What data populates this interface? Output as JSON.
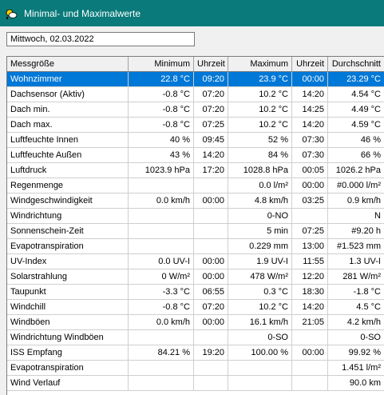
{
  "window": {
    "title": "Minimal- und Maximalwerte",
    "icon": "weather-app-icon"
  },
  "date": "Mittwoch, 02.03.2022",
  "table": {
    "headers": [
      "Messgröße",
      "Minimum",
      "Uhrzeit",
      "Maximum",
      "Uhrzeit",
      "Durchschnitt"
    ],
    "selected_row": 0,
    "rows": [
      [
        "Wohnzimmer",
        "22.8 °C",
        "09:20",
        "23.9 °C",
        "00:00",
        "23.29 °C"
      ],
      [
        "Dachsensor (Aktiv)",
        "-0.8 °C",
        "07:20",
        "10.2 °C",
        "14:20",
        "4.54 °C"
      ],
      [
        "Dach min.",
        "-0.8 °C",
        "07:20",
        "10.2 °C",
        "14:25",
        "4.49 °C"
      ],
      [
        "Dach max.",
        "-0.8 °C",
        "07:25",
        "10.2 °C",
        "14:20",
        "4.59 °C"
      ],
      [
        "Luftfeuchte Innen",
        "40 %",
        "09:45",
        "52 %",
        "07:30",
        "46 %"
      ],
      [
        "Luftfeuchte Außen",
        "43 %",
        "14:20",
        "84 %",
        "07:30",
        "66 %"
      ],
      [
        "Luftdruck",
        "1023.9 hPa",
        "17:20",
        "1028.8 hPa",
        "00:05",
        "1026.2 hPa"
      ],
      [
        "Regenmenge",
        "",
        "",
        "0.0 l/m²",
        "00:00",
        "#0.000 l/m²"
      ],
      [
        "Windgeschwindigkeit",
        "0.0 km/h",
        "00:00",
        "4.8 km/h",
        "03:25",
        "0.9 km/h"
      ],
      [
        "Windrichtung",
        "",
        "",
        "0-NO",
        "",
        "N"
      ],
      [
        "Sonnenschein-Zeit",
        "",
        "",
        "5 min",
        "07:25",
        "#9.20 h"
      ],
      [
        "Evapotranspiration",
        "",
        "",
        "0.229 mm",
        "13:00",
        "#1.523 mm"
      ],
      [
        "UV-Index",
        "0.0 UV-I",
        "00:00",
        "1.9 UV-I",
        "11:55",
        "1.3 UV-I"
      ],
      [
        "Solarstrahlung",
        "0 W/m²",
        "00:00",
        "478 W/m²",
        "12:20",
        "281 W/m²"
      ],
      [
        "Taupunkt",
        "-3.3 °C",
        "06:55",
        "0.3 °C",
        "18:30",
        "-1.8 °C"
      ],
      [
        "Windchill",
        "-0.8 °C",
        "07:20",
        "10.2 °C",
        "14:20",
        "4.5 °C"
      ],
      [
        "Windböen",
        "0.0 km/h",
        "00:00",
        "16.1 km/h",
        "21:05",
        "4.2 km/h"
      ],
      [
        "Windrichtung Windböen",
        "",
        "",
        "0-SO",
        "",
        "0-SO"
      ],
      [
        "ISS Empfang",
        "84.21 %",
        "19:20",
        "100.00 %",
        "00:00",
        "99.92 %"
      ],
      [
        "Evapotranspiration",
        "",
        "",
        "",
        "",
        "1.451 l/m²"
      ],
      [
        "Wind Verlauf",
        "",
        "",
        "",
        "",
        "90.0 km"
      ]
    ]
  }
}
